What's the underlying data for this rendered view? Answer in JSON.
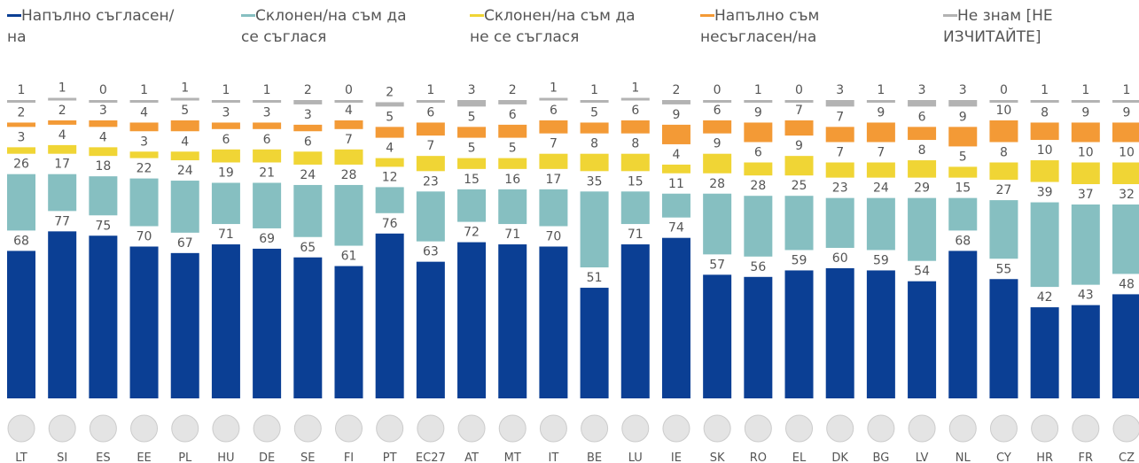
{
  "chart_data": {
    "type": "stacked-bar",
    "categories": [
      "LT",
      "SI",
      "ES",
      "EE",
      "PL",
      "HU",
      "DE",
      "SE",
      "FI",
      "PT",
      "ЕС27",
      "AT",
      "MT",
      "IT",
      "BE",
      "LU",
      "IE",
      "SK",
      "RO",
      "EL",
      "DK",
      "BG",
      "LV",
      "NL",
      "CY",
      "HR",
      "FR",
      "CZ"
    ],
    "series": [
      {
        "name": "Напълно съгласен/на",
        "color": "#0b3f94",
        "values": [
          68,
          77,
          75,
          70,
          67,
          71,
          69,
          65,
          61,
          76,
          63,
          72,
          71,
          70,
          51,
          71,
          74,
          57,
          56,
          59,
          60,
          59,
          54,
          68,
          55,
          42,
          43,
          48
        ]
      },
      {
        "name": "Склонен/на съм да се съглася",
        "color": "#86bfc1",
        "values": [
          26,
          17,
          18,
          22,
          24,
          19,
          21,
          24,
          28,
          12,
          23,
          15,
          16,
          17,
          35,
          15,
          11,
          28,
          28,
          25,
          23,
          24,
          29,
          15,
          27,
          39,
          37,
          32
        ]
      },
      {
        "name": "Склонен/на съм да не се съглася",
        "color": "#f0d535",
        "values": [
          3,
          4,
          4,
          3,
          4,
          6,
          6,
          6,
          7,
          4,
          7,
          5,
          5,
          7,
          8,
          8,
          4,
          9,
          6,
          9,
          7,
          7,
          8,
          5,
          8,
          10,
          10,
          10
        ]
      },
      {
        "name": "Напълно съм несъгласен/на",
        "color": "#f39a36",
        "values": [
          2,
          2,
          3,
          4,
          5,
          3,
          3,
          3,
          4,
          5,
          6,
          5,
          6,
          6,
          5,
          6,
          9,
          6,
          9,
          7,
          7,
          9,
          6,
          9,
          10,
          8,
          9,
          9
        ]
      },
      {
        "name": "Не знам [НЕ ИЗЧИТАЙТЕ]",
        "color": "#b3b3b3",
        "values": [
          1,
          1,
          0,
          1,
          1,
          1,
          1,
          2,
          0,
          2,
          1,
          3,
          2,
          1,
          1,
          1,
          2,
          0,
          1,
          0,
          3,
          1,
          3,
          3,
          0,
          1,
          1,
          1
        ]
      }
    ]
  }
}
